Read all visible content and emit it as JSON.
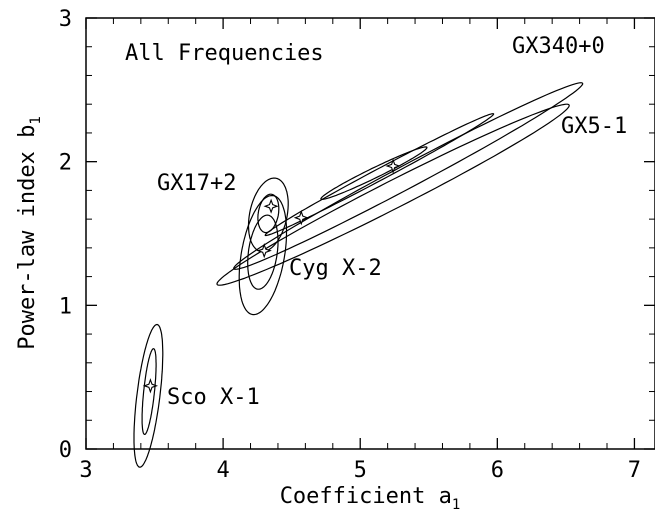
{
  "chart_data": {
    "type": "scatter",
    "title": "",
    "xlabel": "Coefficient a",
    "xlabel_sub": "1",
    "ylabel": "Power-law index b",
    "ylabel_sub": "1",
    "xlim": [
      3,
      7.15
    ],
    "ylim": [
      0,
      3
    ],
    "xticks": [
      3,
      4,
      5,
      6,
      7
    ],
    "yticks": [
      0,
      1,
      2,
      3
    ],
    "grid": false,
    "annotation": "All Frequencies",
    "sources": [
      {
        "name": "Sco X-1",
        "best_fit": {
          "x": 3.47,
          "y": 0.44
        },
        "contours": [
          {
            "cx": 3.46,
            "cy": 0.4,
            "length": 0.6,
            "width": 0.075,
            "angle_deg": 84
          },
          {
            "cx": 3.455,
            "cy": 0.37,
            "length": 1.0,
            "width": 0.16,
            "angle_deg": 83
          }
        ]
      },
      {
        "name": "GX17+2",
        "best_fit": {
          "x": 4.35,
          "y": 1.69
        },
        "contours": [
          {
            "cx": 4.33,
            "cy": 1.64,
            "length": 0.27,
            "width": 0.14,
            "angle_deg": 80
          },
          {
            "cx": 4.33,
            "cy": 1.63,
            "length": 0.52,
            "width": 0.26,
            "angle_deg": 78
          }
        ]
      },
      {
        "name": "Cyg X-2",
        "best_fit": {
          "x": 4.3,
          "y": 1.38
        },
        "contours": [
          {
            "cx": 4.29,
            "cy": 1.37,
            "length": 0.52,
            "width": 0.2,
            "angle_deg": 82
          },
          {
            "cx": 4.29,
            "cy": 1.35,
            "length": 0.84,
            "width": 0.3,
            "angle_deg": 80
          }
        ]
      },
      {
        "name": "GX5-1",
        "best_fit": {
          "x": 4.57,
          "y": 1.61
        },
        "contours": [
          {
            "cx": 5.14,
            "cy": 1.91,
            "length": 1.8,
            "width": 0.08,
            "angle_deg": 28
          },
          {
            "cx": 5.24,
            "cy": 1.77,
            "length": 2.75,
            "width": 0.19,
            "angle_deg": 27
          }
        ]
      },
      {
        "name": "GX340+0",
        "best_fit": {
          "x": 5.24,
          "y": 1.97
        },
        "contours": [
          {
            "cx": 5.1,
            "cy": 1.92,
            "length": 0.82,
            "width": 0.07,
            "angle_deg": 26
          },
          {
            "cx": 5.35,
            "cy": 1.9,
            "length": 2.75,
            "width": 0.16,
            "angle_deg": 28
          }
        ]
      }
    ]
  }
}
